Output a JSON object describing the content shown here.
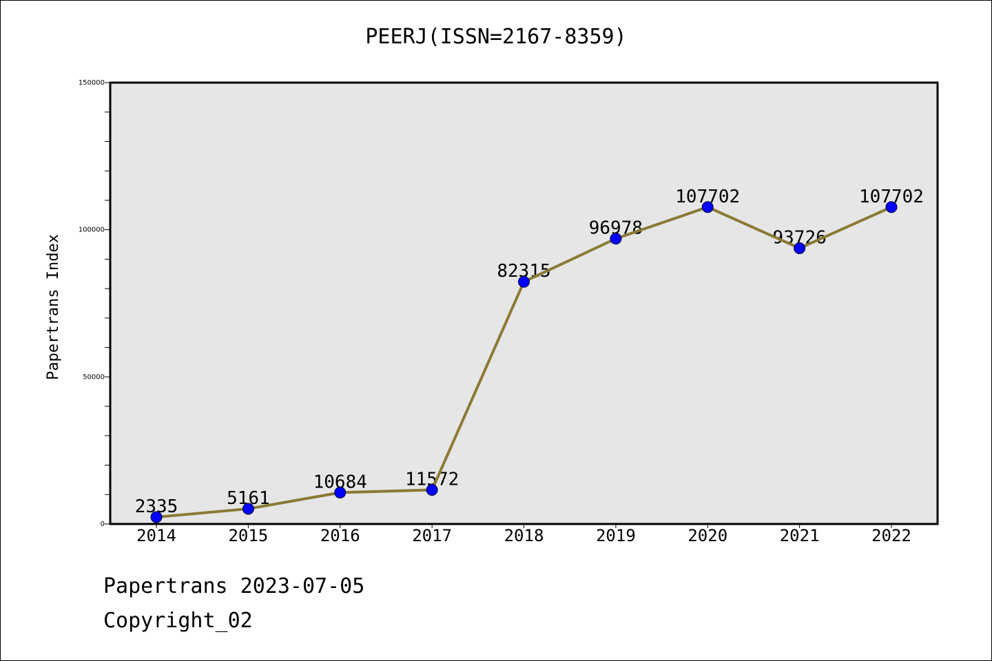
{
  "chart_data": {
    "type": "line",
    "title": "PEERJ(ISSN=2167-8359)",
    "xlabel": "",
    "ylabel": "Papertrans Index",
    "categories": [
      "2014",
      "2015",
      "2016",
      "2017",
      "2018",
      "2019",
      "2020",
      "2021",
      "2022"
    ],
    "values": [
      2335,
      5161,
      10684,
      11572,
      82315,
      96978,
      107702,
      93726,
      107702
    ],
    "ylim": [
      0,
      150000
    ],
    "yticks": [
      "0",
      "50000",
      "100000",
      "150000"
    ],
    "line_color": "#8b7a36",
    "marker_color": "#0000ff",
    "plot_background": "#e6e6e6",
    "grid": false
  },
  "footer": {
    "line1": "Papertrans 2023-07-05",
    "line2": "Copyright_02"
  }
}
